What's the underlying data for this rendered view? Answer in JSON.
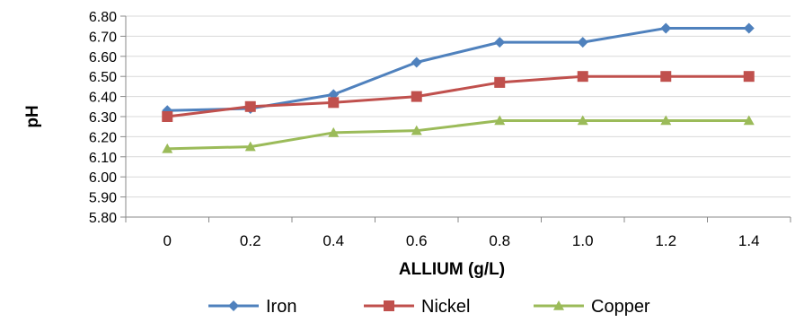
{
  "chart_data": {
    "type": "line",
    "xlabel": "ALLIUM (g/L)",
    "ylabel": "pH",
    "x": [
      "0",
      "0.2",
      "0.4",
      "0.6",
      "0.8",
      "1.0",
      "1.2",
      "1.4"
    ],
    "ylim": [
      5.8,
      6.8
    ],
    "yticks": [
      "5.80",
      "5.90",
      "6.00",
      "6.10",
      "6.20",
      "6.30",
      "6.40",
      "6.50",
      "6.60",
      "6.70",
      "6.80"
    ],
    "grid": true,
    "legend_position": "bottom",
    "series": [
      {
        "name": "Iron",
        "color": "#4f81bd",
        "marker": "diamond",
        "values": [
          6.33,
          6.34,
          6.41,
          6.57,
          6.67,
          6.67,
          6.74,
          6.74
        ]
      },
      {
        "name": "Nickel",
        "color": "#c0504d",
        "marker": "square",
        "values": [
          6.3,
          6.35,
          6.37,
          6.4,
          6.47,
          6.5,
          6.5,
          6.5
        ]
      },
      {
        "name": "Copper",
        "color": "#9bbb59",
        "marker": "triangle",
        "values": [
          6.14,
          6.15,
          6.22,
          6.23,
          6.28,
          6.28,
          6.28,
          6.28
        ]
      }
    ]
  }
}
